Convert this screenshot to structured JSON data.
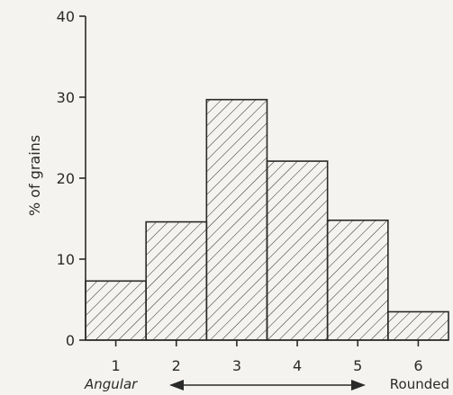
{
  "chart_data": {
    "type": "bar",
    "title": "",
    "ylabel": "% of grains",
    "ylim": [
      0,
      40
    ],
    "yticks": [
      0,
      10,
      20,
      30,
      40
    ],
    "categories": [
      "1",
      "2",
      "3",
      "4",
      "5",
      "6"
    ],
    "values": [
      7.3,
      14.6,
      29.7,
      22.1,
      14.8,
      3.5
    ],
    "bar_fill": "hatched",
    "x_axis_annotation": {
      "left": "Angular",
      "right": "Rounded",
      "arrow": "double-headed"
    },
    "grid": false,
    "legend": "none"
  },
  "colors": {
    "background": "#f4f3ef",
    "ink": "#2a2a2a"
  }
}
